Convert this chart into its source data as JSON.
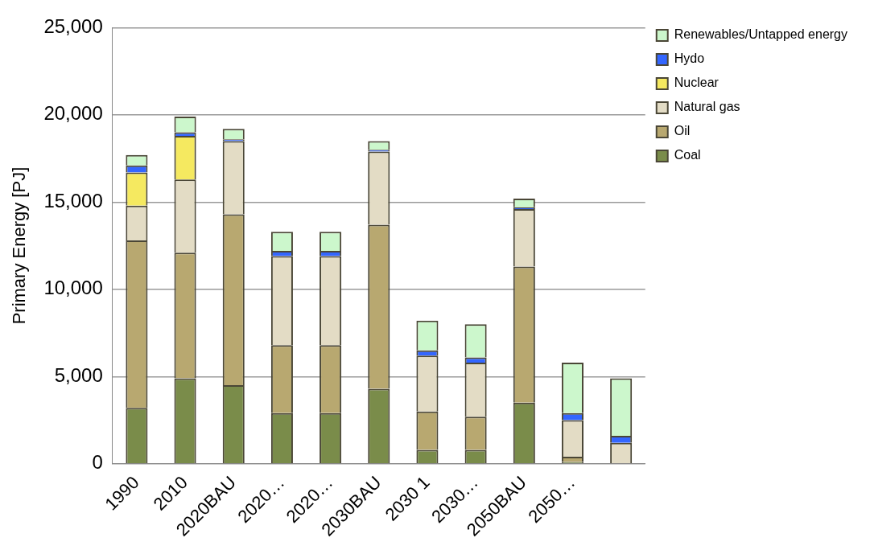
{
  "chart_data": {
    "type": "bar",
    "stacked": true,
    "ylabel": "Primary Energy [PJ]",
    "categories": [
      "1990",
      "2010",
      "2020BAU",
      "2020…",
      "2020…",
      "2030BAU",
      "2030 1",
      "2030…",
      "2050BAU",
      "2050…",
      null
    ],
    "series": [
      {
        "name": "Coal",
        "color": "#7a8c4a",
        "values": [
          3200,
          4900,
          4500,
          2900,
          2900,
          4300,
          800,
          800,
          3500,
          100,
          0
        ]
      },
      {
        "name": "Oil",
        "color": "#b8a870",
        "values": [
          9600,
          7200,
          9800,
          3900,
          3900,
          9400,
          2200,
          1900,
          7800,
          300,
          0
        ]
      },
      {
        "name": "Natural gas",
        "color": "#e3dcc5",
        "values": [
          2000,
          4200,
          4200,
          5100,
          5100,
          4200,
          3200,
          3100,
          3300,
          2100,
          1200
        ]
      },
      {
        "name": "Nuclear",
        "color": "#f5e960",
        "values": [
          1900,
          2500,
          0,
          0,
          0,
          0,
          0,
          0,
          0,
          0,
          0
        ]
      },
      {
        "name": "Hydo",
        "color": "#3366ff",
        "values": [
          400,
          200,
          100,
          300,
          300,
          100,
          300,
          300,
          100,
          400,
          400
        ]
      },
      {
        "name": "Renewables/Untapped energy",
        "color": "#ccf7cc",
        "values": [
          600,
          900,
          600,
          1100,
          1100,
          500,
          1700,
          1900,
          500,
          2900,
          3300
        ]
      }
    ],
    "ylim": [
      0,
      25000
    ],
    "yticks": [
      0,
      {
        "value": 5000,
        "label": "5,000"
      },
      {
        "value": 10000,
        "label": "10,000"
      },
      {
        "value": 15000,
        "label": "15,000"
      },
      {
        "value": 20000,
        "label": "20,000"
      },
      {
        "value": 25000,
        "label": "25,000"
      }
    ],
    "grid": "y",
    "legend": "top right"
  }
}
